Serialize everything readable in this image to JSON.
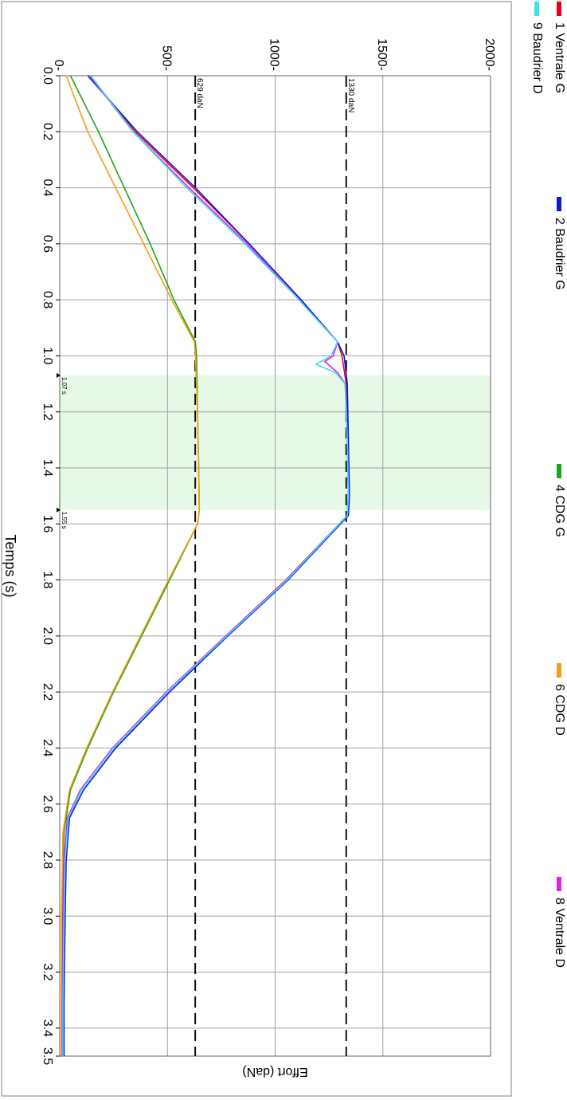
{
  "chart_data": {
    "type": "line",
    "title": "",
    "xlabel": "Temps (s)",
    "ylabel": "Effort (daN)",
    "xlim": [
      0,
      3.5
    ],
    "ylim": [
      0,
      2000
    ],
    "x_ticks": [
      0.0,
      0.2,
      0.4,
      0.6,
      0.8,
      1.0,
      1.2,
      1.4,
      1.6,
      1.8,
      2.0,
      2.2,
      2.4,
      2.6,
      2.8,
      3.0,
      3.2,
      3.4,
      3.5
    ],
    "x_tick_labels": [
      "0.0",
      "0.2",
      "0.4",
      "0.6",
      "0.8",
      "1.0",
      "1.2",
      "1.4",
      "1.6",
      "1.8",
      "2.0",
      "2.2",
      "2.4",
      "2.6",
      "2.8",
      "3.0",
      "3.2",
      "3.4",
      "3.5"
    ],
    "y_ticks": [
      0,
      500,
      1000,
      1500,
      2000
    ],
    "y_tick_labels": [
      "0",
      "500",
      "1000",
      "1500",
      "2000"
    ],
    "grid": true,
    "legend_position": "left",
    "orientation": "rotated 90 degrees clockwise",
    "highlight_band": {
      "x_start": 1.07,
      "x_end": 1.55,
      "color": "#e6f9e6",
      "start_label": "1.07 s",
      "end_label": "1.55 s"
    },
    "reference_lines": [
      {
        "y": 1330,
        "label": "1330 daN",
        "style": "dashed"
      },
      {
        "y": 629,
        "label": "629 daN",
        "style": "dashed"
      }
    ],
    "series": [
      {
        "name": "1 Ventrale G",
        "color": "#e8001a",
        "x": [
          0.0,
          0.2,
          0.4,
          0.6,
          0.8,
          0.95,
          1.0,
          1.1,
          1.3,
          1.5,
          1.57,
          1.8,
          2.0,
          2.2,
          2.4,
          2.55,
          2.65,
          2.8,
          3.0,
          3.3,
          3.5
        ],
        "y": [
          140,
          350,
          620,
          880,
          1120,
          1290,
          1310,
          1330,
          1335,
          1340,
          1335,
          1050,
          770,
          500,
          250,
          100,
          40,
          25,
          20,
          15,
          15
        ]
      },
      {
        "name": "2 Baudrier G",
        "color": "#0a1ad8",
        "x": [
          0.0,
          0.2,
          0.4,
          0.6,
          0.8,
          0.95,
          1.0,
          1.1,
          1.3,
          1.5,
          1.57,
          1.8,
          2.0,
          2.2,
          2.4,
          2.55,
          2.65,
          2.8,
          3.0,
          3.3,
          3.5
        ],
        "y": [
          130,
          360,
          630,
          880,
          1120,
          1290,
          1320,
          1335,
          1340,
          1345,
          1340,
          1060,
          780,
          510,
          260,
          110,
          45,
          30,
          25,
          20,
          20
        ]
      },
      {
        "name": "4 CDG G",
        "color": "#1fa31f",
        "x": [
          0.0,
          0.2,
          0.4,
          0.6,
          0.8,
          0.95,
          1.0,
          1.2,
          1.4,
          1.55,
          1.6,
          1.8,
          2.0,
          2.2,
          2.4,
          2.55,
          2.7,
          3.0,
          3.5
        ],
        "y": [
          50,
          180,
          300,
          420,
          530,
          630,
          635,
          640,
          645,
          648,
          640,
          510,
          380,
          250,
          130,
          50,
          20,
          10,
          10
        ]
      },
      {
        "name": "6 CDG D",
        "color": "#f0a010",
        "x": [
          0.0,
          0.2,
          0.4,
          0.6,
          0.8,
          0.95,
          1.0,
          1.2,
          1.4,
          1.55,
          1.6,
          1.8,
          2.0,
          2.2,
          2.4,
          2.55,
          2.7,
          3.0,
          3.5
        ],
        "y": [
          30,
          130,
          260,
          390,
          520,
          625,
          630,
          640,
          645,
          648,
          640,
          505,
          375,
          245,
          125,
          45,
          15,
          8,
          8
        ]
      },
      {
        "name": "8 Ventrale D",
        "color": "#e020e0",
        "x": [
          0.0,
          0.2,
          0.4,
          0.6,
          0.8,
          0.95,
          1.0,
          1.02,
          1.06,
          1.1,
          1.3,
          1.5,
          1.57,
          1.8,
          2.0,
          2.2,
          2.4,
          2.55,
          2.65,
          2.8,
          3.0,
          3.3,
          3.5
        ],
        "y": [
          140,
          340,
          600,
          870,
          1110,
          1290,
          1270,
          1230,
          1290,
          1325,
          1335,
          1340,
          1335,
          1050,
          770,
          495,
          245,
          95,
          35,
          20,
          15,
          12,
          12
        ]
      },
      {
        "name": "9 Baudrier D",
        "color": "#40e0f0",
        "x": [
          0.0,
          0.2,
          0.4,
          0.6,
          0.8,
          0.95,
          1.0,
          1.03,
          1.06,
          1.1,
          1.3,
          1.5,
          1.57,
          1.8,
          2.0,
          2.2,
          2.4,
          2.55,
          2.65,
          2.8,
          3.0,
          3.3,
          3.5
        ],
        "y": [
          145,
          340,
          590,
          860,
          1110,
          1290,
          1260,
          1190,
          1280,
          1325,
          1335,
          1340,
          1335,
          1055,
          775,
          500,
          250,
          100,
          40,
          25,
          20,
          15,
          15
        ]
      }
    ]
  }
}
